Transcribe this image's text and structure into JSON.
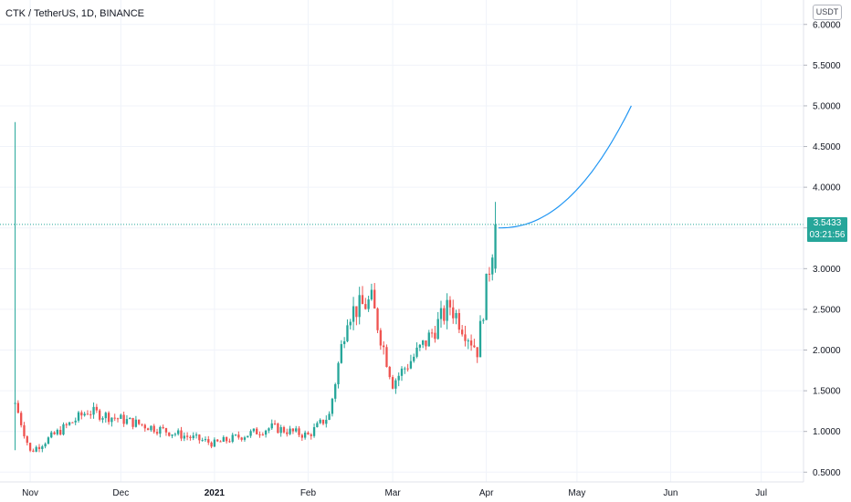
{
  "header": {
    "title": "CTK / TetherUS, 1D, BINANCE",
    "currency": "USDT"
  },
  "last_price": {
    "value": "3.5433",
    "countdown": "03:21:56",
    "color": "#26a69a"
  },
  "colors": {
    "up": "#26a69a",
    "down": "#ef5350",
    "projection": "#2196f3",
    "grid": "#f0f3fa"
  },
  "chart_data": {
    "type": "candlestick",
    "title": "CTK / TetherUS, 1D, BINANCE",
    "y_ticks": [
      "6.0000",
      "5.5000",
      "5.0000",
      "4.5000",
      "4.0000",
      "3.5000",
      "3.0000",
      "2.5000",
      "2.0000",
      "1.5000",
      "1.0000",
      "0.5000"
    ],
    "y_tick_values": [
      6.0,
      5.5,
      5.0,
      4.5,
      4.0,
      3.5,
      3.0,
      2.5,
      2.0,
      1.5,
      1.0,
      0.5
    ],
    "x_ticks": [
      "Nov",
      "Dec",
      "2021",
      "Feb",
      "Mar",
      "Apr",
      "May",
      "Jun",
      "Jul"
    ],
    "x_tick_dates": [
      "2020-11-01",
      "2020-12-01",
      "2021-01-01",
      "2021-02-01",
      "2021-03-01",
      "2021-04-01",
      "2021-05-01",
      "2021-06-01",
      "2021-07-01"
    ],
    "ylim": [
      0.38,
      6.3
    ],
    "xlim": [
      "2020-10-22",
      "2021-07-15"
    ],
    "ohlc_monthly_anchors": [
      {
        "date": "2020-10-27",
        "open": 1.35,
        "high": 4.8,
        "low": 0.77,
        "close": 1.35
      },
      {
        "date": "2020-11-01",
        "close": 0.75
      },
      {
        "date": "2020-11-20",
        "close": 1.25
      },
      {
        "date": "2020-12-01",
        "close": 1.15
      },
      {
        "date": "2021-01-01",
        "close": 0.85
      },
      {
        "date": "2021-01-20",
        "close": 1.05
      },
      {
        "date": "2021-02-01",
        "close": 0.95
      },
      {
        "date": "2021-02-08",
        "close": 1.2
      },
      {
        "date": "2021-02-14",
        "close": 2.45
      },
      {
        "date": "2021-02-22",
        "close": 2.6
      },
      {
        "date": "2021-03-01",
        "close": 1.6
      },
      {
        "date": "2021-03-12",
        "close": 2.1
      },
      {
        "date": "2021-03-20",
        "close": 2.55
      },
      {
        "date": "2021-03-29",
        "close": 2.0
      },
      {
        "date": "2021-04-04",
        "open": 3.0,
        "high": 3.82,
        "low": 2.95,
        "close": 3.5433
      }
    ],
    "projection": {
      "start": {
        "date": "2021-04-05",
        "value": 3.5
      },
      "end": {
        "date": "2021-05-19",
        "value": 5.0
      }
    },
    "last_price": 3.5433
  }
}
